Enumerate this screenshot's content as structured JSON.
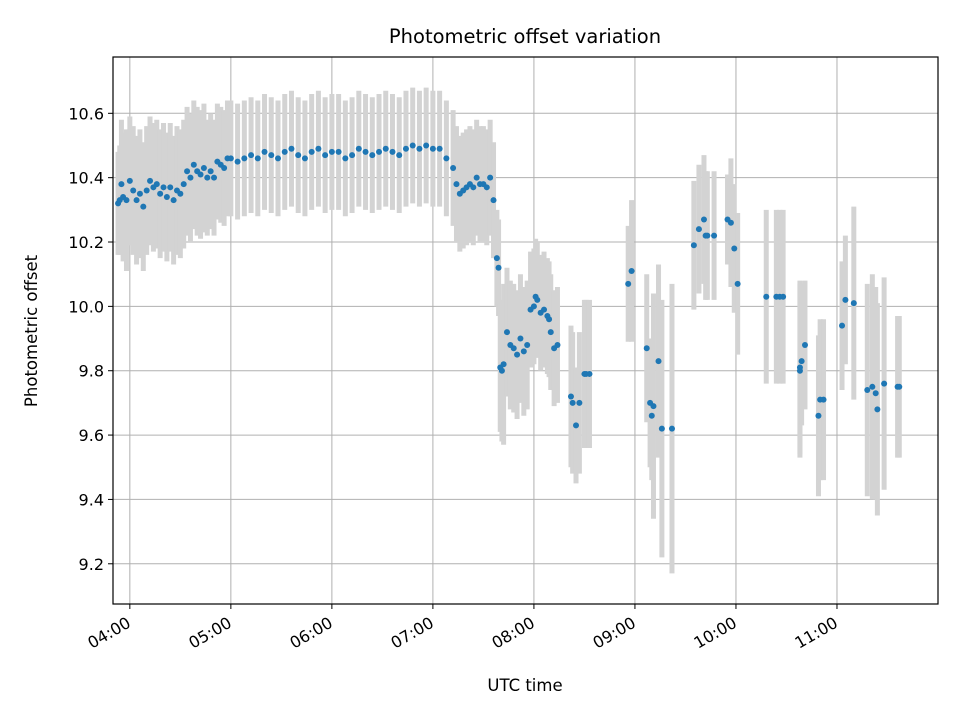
{
  "chart_data": {
    "type": "scatter",
    "title": "Photometric offset variation",
    "xlabel": "UTC time",
    "ylabel": "Photometric offset",
    "x_unit": "UTC time of day (HH:MM)",
    "xlim": [
      "03:50",
      "12:00"
    ],
    "ylim": [
      9.075,
      10.775
    ],
    "grid": true,
    "marker_color": "#1f77b4",
    "errorbar_color": "#d3d3d3",
    "x_ticks": [
      {
        "value": "04:00",
        "label": "04:00"
      },
      {
        "value": "05:00",
        "label": "05:00"
      },
      {
        "value": "06:00",
        "label": "06:00"
      },
      {
        "value": "07:00",
        "label": "07:00"
      },
      {
        "value": "08:00",
        "label": "08:00"
      },
      {
        "value": "09:00",
        "label": "09:00"
      },
      {
        "value": "10:00",
        "label": "10:00"
      },
      {
        "value": "11:00",
        "label": "11:00"
      }
    ],
    "y_ticks": [
      {
        "value": 9.2,
        "label": "9.2"
      },
      {
        "value": 9.4,
        "label": "9.4"
      },
      {
        "value": 9.6,
        "label": "9.6"
      },
      {
        "value": 9.8,
        "label": "9.8"
      },
      {
        "value": 10.0,
        "label": "10.0"
      },
      {
        "value": 10.2,
        "label": "10.2"
      },
      {
        "value": 10.4,
        "label": "10.4"
      },
      {
        "value": 10.6,
        "label": "10.6"
      }
    ],
    "points": [
      {
        "x": "03:53",
        "y": 10.32,
        "err": 0.16
      },
      {
        "x": "03:54",
        "y": 10.33,
        "err": 0.17
      },
      {
        "x": "03:55",
        "y": 10.38,
        "err": 0.2
      },
      {
        "x": "03:56",
        "y": 10.34,
        "err": 0.2
      },
      {
        "x": "03:58",
        "y": 10.33,
        "err": 0.22
      },
      {
        "x": "04:00",
        "y": 10.39,
        "err": 0.2
      },
      {
        "x": "04:02",
        "y": 10.36,
        "err": 0.2
      },
      {
        "x": "04:04",
        "y": 10.33,
        "err": 0.2
      },
      {
        "x": "04:06",
        "y": 10.35,
        "err": 0.2
      },
      {
        "x": "04:08",
        "y": 10.31,
        "err": 0.2
      },
      {
        "x": "04:10",
        "y": 10.36,
        "err": 0.2
      },
      {
        "x": "04:12",
        "y": 10.39,
        "err": 0.2
      },
      {
        "x": "04:14",
        "y": 10.37,
        "err": 0.2
      },
      {
        "x": "04:16",
        "y": 10.38,
        "err": 0.2
      },
      {
        "x": "04:18",
        "y": 10.35,
        "err": 0.2
      },
      {
        "x": "04:20",
        "y": 10.37,
        "err": 0.2
      },
      {
        "x": "04:22",
        "y": 10.34,
        "err": 0.2
      },
      {
        "x": "04:24",
        "y": 10.37,
        "err": 0.2
      },
      {
        "x": "04:26",
        "y": 10.33,
        "err": 0.2
      },
      {
        "x": "04:28",
        "y": 10.36,
        "err": 0.2
      },
      {
        "x": "04:30",
        "y": 10.35,
        "err": 0.2
      },
      {
        "x": "04:32",
        "y": 10.38,
        "err": 0.2
      },
      {
        "x": "04:34",
        "y": 10.42,
        "err": 0.2
      },
      {
        "x": "04:36",
        "y": 10.4,
        "err": 0.2
      },
      {
        "x": "04:38",
        "y": 10.44,
        "err": 0.2
      },
      {
        "x": "04:40",
        "y": 10.42,
        "err": 0.2
      },
      {
        "x": "04:42",
        "y": 10.41,
        "err": 0.2
      },
      {
        "x": "04:44",
        "y": 10.43,
        "err": 0.2
      },
      {
        "x": "04:46",
        "y": 10.4,
        "err": 0.18
      },
      {
        "x": "04:48",
        "y": 10.42,
        "err": 0.18
      },
      {
        "x": "04:50",
        "y": 10.4,
        "err": 0.18
      },
      {
        "x": "04:52",
        "y": 10.45,
        "err": 0.18
      },
      {
        "x": "04:54",
        "y": 10.44,
        "err": 0.18
      },
      {
        "x": "04:56",
        "y": 10.43,
        "err": 0.18
      },
      {
        "x": "04:58",
        "y": 10.46,
        "err": 0.18
      },
      {
        "x": "05:00",
        "y": 10.46,
        "err": 0.18
      },
      {
        "x": "05:04",
        "y": 10.45,
        "err": 0.18
      },
      {
        "x": "05:08",
        "y": 10.46,
        "err": 0.18
      },
      {
        "x": "05:12",
        "y": 10.47,
        "err": 0.18
      },
      {
        "x": "05:16",
        "y": 10.46,
        "err": 0.18
      },
      {
        "x": "05:20",
        "y": 10.48,
        "err": 0.18
      },
      {
        "x": "05:24",
        "y": 10.47,
        "err": 0.18
      },
      {
        "x": "05:28",
        "y": 10.46,
        "err": 0.18
      },
      {
        "x": "05:32",
        "y": 10.48,
        "err": 0.18
      },
      {
        "x": "05:36",
        "y": 10.49,
        "err": 0.18
      },
      {
        "x": "05:40",
        "y": 10.47,
        "err": 0.18
      },
      {
        "x": "05:44",
        "y": 10.46,
        "err": 0.18
      },
      {
        "x": "05:48",
        "y": 10.48,
        "err": 0.18
      },
      {
        "x": "05:52",
        "y": 10.49,
        "err": 0.18
      },
      {
        "x": "05:56",
        "y": 10.47,
        "err": 0.18
      },
      {
        "x": "06:00",
        "y": 10.48,
        "err": 0.18
      },
      {
        "x": "06:04",
        "y": 10.48,
        "err": 0.18
      },
      {
        "x": "06:08",
        "y": 10.46,
        "err": 0.18
      },
      {
        "x": "06:12",
        "y": 10.47,
        "err": 0.18
      },
      {
        "x": "06:16",
        "y": 10.49,
        "err": 0.18
      },
      {
        "x": "06:20",
        "y": 10.48,
        "err": 0.18
      },
      {
        "x": "06:24",
        "y": 10.47,
        "err": 0.18
      },
      {
        "x": "06:28",
        "y": 10.48,
        "err": 0.18
      },
      {
        "x": "06:32",
        "y": 10.49,
        "err": 0.18
      },
      {
        "x": "06:36",
        "y": 10.48,
        "err": 0.18
      },
      {
        "x": "06:40",
        "y": 10.47,
        "err": 0.18
      },
      {
        "x": "06:44",
        "y": 10.49,
        "err": 0.18
      },
      {
        "x": "06:48",
        "y": 10.5,
        "err": 0.18
      },
      {
        "x": "06:52",
        "y": 10.49,
        "err": 0.18
      },
      {
        "x": "06:56",
        "y": 10.5,
        "err": 0.18
      },
      {
        "x": "07:00",
        "y": 10.49,
        "err": 0.18
      },
      {
        "x": "07:04",
        "y": 10.49,
        "err": 0.18
      },
      {
        "x": "07:08",
        "y": 10.46,
        "err": 0.18
      },
      {
        "x": "07:12",
        "y": 10.43,
        "err": 0.18
      },
      {
        "x": "07:14",
        "y": 10.38,
        "err": 0.18
      },
      {
        "x": "07:16",
        "y": 10.35,
        "err": 0.18
      },
      {
        "x": "07:18",
        "y": 10.36,
        "err": 0.18
      },
      {
        "x": "07:20",
        "y": 10.37,
        "err": 0.18
      },
      {
        "x": "07:22",
        "y": 10.38,
        "err": 0.18
      },
      {
        "x": "07:24",
        "y": 10.37,
        "err": 0.18
      },
      {
        "x": "07:26",
        "y": 10.4,
        "err": 0.18
      },
      {
        "x": "07:28",
        "y": 10.38,
        "err": 0.18
      },
      {
        "x": "07:30",
        "y": 10.38,
        "err": 0.18
      },
      {
        "x": "07:32",
        "y": 10.37,
        "err": 0.18
      },
      {
        "x": "07:34",
        "y": 10.4,
        "err": 0.18
      },
      {
        "x": "07:36",
        "y": 10.33,
        "err": 0.18
      },
      {
        "x": "07:38",
        "y": 10.15,
        "err": 0.15
      },
      {
        "x": "07:39",
        "y": 10.12,
        "err": 0.15
      },
      {
        "x": "07:40",
        "y": 9.81,
        "err": 0.2
      },
      {
        "x": "07:41",
        "y": 9.8,
        "err": 0.22
      },
      {
        "x": "07:42",
        "y": 9.82,
        "err": 0.25
      },
      {
        "x": "07:44",
        "y": 9.92,
        "err": 0.2
      },
      {
        "x": "07:46",
        "y": 9.88,
        "err": 0.2
      },
      {
        "x": "07:48",
        "y": 9.87,
        "err": 0.2
      },
      {
        "x": "07:50",
        "y": 9.85,
        "err": 0.2
      },
      {
        "x": "07:52",
        "y": 9.9,
        "err": 0.2
      },
      {
        "x": "07:54",
        "y": 9.86,
        "err": 0.2
      },
      {
        "x": "07:56",
        "y": 9.88,
        "err": 0.2
      },
      {
        "x": "07:58",
        "y": 9.99,
        "err": 0.18
      },
      {
        "x": "08:00",
        "y": 10.0,
        "err": 0.18
      },
      {
        "x": "08:01",
        "y": 10.03,
        "err": 0.18
      },
      {
        "x": "08:02",
        "y": 10.02,
        "err": 0.18
      },
      {
        "x": "08:04",
        "y": 9.98,
        "err": 0.18
      },
      {
        "x": "08:06",
        "y": 9.99,
        "err": 0.18
      },
      {
        "x": "08:08",
        "y": 9.97,
        "err": 0.18
      },
      {
        "x": "08:09",
        "y": 9.96,
        "err": 0.18
      },
      {
        "x": "08:10",
        "y": 9.92,
        "err": 0.18
      },
      {
        "x": "08:12",
        "y": 9.87,
        "err": 0.18
      },
      {
        "x": "08:14",
        "y": 9.88,
        "err": 0.18
      },
      {
        "x": "08:22",
        "y": 9.72,
        "err": 0.22
      },
      {
        "x": "08:23",
        "y": 9.7,
        "err": 0.22
      },
      {
        "x": "08:25",
        "y": 9.63,
        "err": 0.18
      },
      {
        "x": "08:27",
        "y": 9.7,
        "err": 0.22
      },
      {
        "x": "08:30",
        "y": 9.79,
        "err": 0.23
      },
      {
        "x": "08:31",
        "y": 9.79,
        "err": 0.23
      },
      {
        "x": "08:33",
        "y": 9.79,
        "err": 0.23
      },
      {
        "x": "08:56",
        "y": 10.07,
        "err": 0.18
      },
      {
        "x": "08:58",
        "y": 10.11,
        "err": 0.22
      },
      {
        "x": "09:07",
        "y": 9.87,
        "err": 0.23
      },
      {
        "x": "09:09",
        "y": 9.7,
        "err": 0.2
      },
      {
        "x": "09:10",
        "y": 9.66,
        "err": 0.2
      },
      {
        "x": "09:11",
        "y": 9.69,
        "err": 0.35
      },
      {
        "x": "09:14",
        "y": 9.83,
        "err": 0.3
      },
      {
        "x": "09:16",
        "y": 9.62,
        "err": 0.4
      },
      {
        "x": "09:22",
        "y": 9.62,
        "err": 0.45
      },
      {
        "x": "09:35",
        "y": 10.19,
        "err": 0.2
      },
      {
        "x": "09:38",
        "y": 10.24,
        "err": 0.2
      },
      {
        "x": "09:41",
        "y": 10.27,
        "err": 0.2
      },
      {
        "x": "09:42",
        "y": 10.22,
        "err": 0.2
      },
      {
        "x": "09:43",
        "y": 10.22,
        "err": 0.2
      },
      {
        "x": "09:47",
        "y": 10.22,
        "err": 0.2
      },
      {
        "x": "09:55",
        "y": 10.27,
        "err": 0.14
      },
      {
        "x": "09:57",
        "y": 10.26,
        "err": 0.2
      },
      {
        "x": "09:59",
        "y": 10.18,
        "err": 0.2
      },
      {
        "x": "10:01",
        "y": 10.07,
        "err": 0.22
      },
      {
        "x": "10:18",
        "y": 10.03,
        "err": 0.27
      },
      {
        "x": "10:24",
        "y": 10.03,
        "err": 0.27
      },
      {
        "x": "10:26",
        "y": 10.03,
        "err": 0.27
      },
      {
        "x": "10:28",
        "y": 10.03,
        "err": 0.27
      },
      {
        "x": "10:38",
        "y": 9.81,
        "err": 0.27
      },
      {
        "x": "10:38",
        "y": 9.8,
        "err": 0.27
      },
      {
        "x": "10:39",
        "y": 9.83,
        "err": 0.2
      },
      {
        "x": "10:41",
        "y": 9.88,
        "err": 0.2
      },
      {
        "x": "10:49",
        "y": 9.66,
        "err": 0.25
      },
      {
        "x": "10:50",
        "y": 9.71,
        "err": 0.25
      },
      {
        "x": "10:52",
        "y": 9.71,
        "err": 0.25
      },
      {
        "x": "11:03",
        "y": 9.94,
        "err": 0.2
      },
      {
        "x": "11:05",
        "y": 10.02,
        "err": 0.2
      },
      {
        "x": "11:10",
        "y": 10.01,
        "err": 0.3
      },
      {
        "x": "11:18",
        "y": 9.74,
        "err": 0.33
      },
      {
        "x": "11:21",
        "y": 9.75,
        "err": 0.35
      },
      {
        "x": "11:23",
        "y": 9.73,
        "err": 0.33
      },
      {
        "x": "11:24",
        "y": 9.68,
        "err": 0.33
      },
      {
        "x": "11:28",
        "y": 9.76,
        "err": 0.33
      },
      {
        "x": "11:36",
        "y": 9.75,
        "err": 0.22
      },
      {
        "x": "11:37",
        "y": 9.75,
        "err": 0.22
      }
    ]
  }
}
